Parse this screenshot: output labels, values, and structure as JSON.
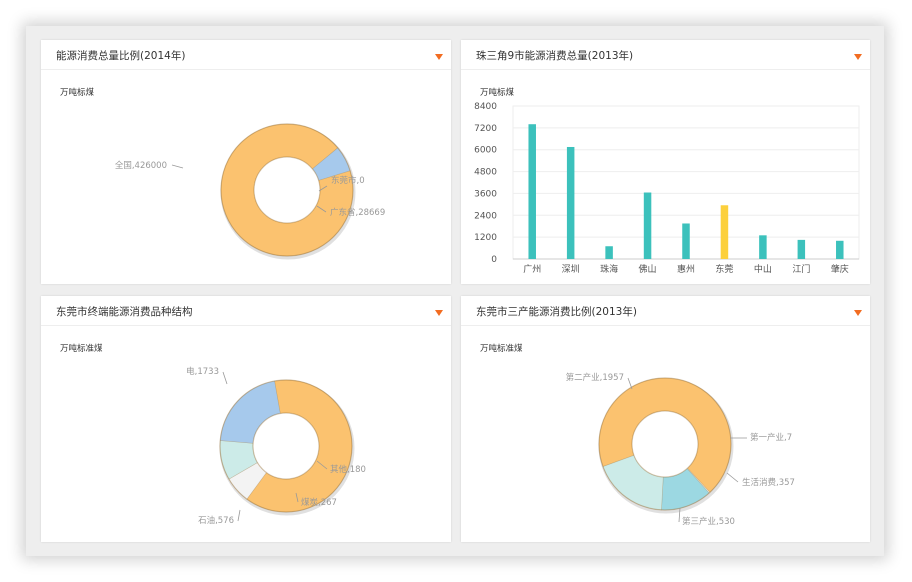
{
  "panels": [
    {
      "title": "能源消费总量比例(2014年)",
      "unit": "万吨标煤"
    },
    {
      "title": "珠三角9市能源消费总量(2013年)",
      "unit": "万吨标煤"
    },
    {
      "title": "东莞市终端能源消费品种结构",
      "unit": "万吨标准煤"
    },
    {
      "title": "东莞市三产能源消费比例(2013年)",
      "unit": "万吨标准煤"
    }
  ],
  "colors": {
    "accent": "#f26c21",
    "orange": "#fbc26f",
    "blue": "#a6c9ec",
    "teal": "#3cc1bc",
    "yellow": "#fcd03c",
    "light_teal": "#ccebe8",
    "cyan": "#9cd8e2",
    "white_slice": "#f3f3f3"
  },
  "chart_data": [
    {
      "type": "pie",
      "title": "能源消费总量比例(2014年)",
      "unit": "万吨标煤",
      "slices": [
        {
          "name": "全国",
          "value": 426000,
          "label": "全国,426000",
          "color": "#fbc26f"
        },
        {
          "name": "东莞市",
          "value": 0,
          "label": "东莞市,0",
          "color": "#a6c9ec"
        },
        {
          "name": "广东省",
          "value": 28669,
          "label": "广东省,28669",
          "color": "#a6c9ec"
        }
      ]
    },
    {
      "type": "bar",
      "title": "珠三角9市能源消费总量(2013年)",
      "ylabel": "万吨标煤",
      "categories": [
        "广州",
        "深圳",
        "珠海",
        "佛山",
        "惠州",
        "东莞",
        "中山",
        "江门",
        "肇庆"
      ],
      "values": [
        7400,
        6150,
        700,
        3650,
        1950,
        2950,
        1300,
        1050,
        1000
      ],
      "highlight": "东莞",
      "yticks": [
        0,
        1200,
        2400,
        3600,
        4800,
        6000,
        7200,
        8400
      ],
      "ylim": [
        0,
        8400
      ],
      "grid": true
    },
    {
      "type": "pie",
      "title": "东莞市终端能源消费品种结构",
      "unit": "万吨标准煤",
      "slices": [
        {
          "name": "电",
          "value": 1733,
          "label": "电,1733",
          "color": "#fbc26f"
        },
        {
          "name": "其他",
          "value": 180,
          "label": "其他,180",
          "color": "#f3f3f3"
        },
        {
          "name": "煤炭",
          "value": 267,
          "label": "煤炭,267",
          "color": "#ccebe8"
        },
        {
          "name": "石油",
          "value": 576,
          "label": "石油,576",
          "color": "#a6c9ec"
        }
      ]
    },
    {
      "type": "pie",
      "title": "东莞市三产能源消费比例(2013年)",
      "unit": "万吨标准煤",
      "slices": [
        {
          "name": "第二产业",
          "value": 1957,
          "label": "第二产业,1957",
          "color": "#fbc26f"
        },
        {
          "name": "第一产业",
          "value": 7,
          "label": "第一产业,7",
          "color": "#f3f3f3"
        },
        {
          "name": "生活消费",
          "value": 357,
          "label": "生活消费,357",
          "color": "#9cd8e2"
        },
        {
          "name": "第三产业",
          "value": 530,
          "label": "第三产业,530",
          "color": "#ccebe8"
        }
      ]
    }
  ]
}
